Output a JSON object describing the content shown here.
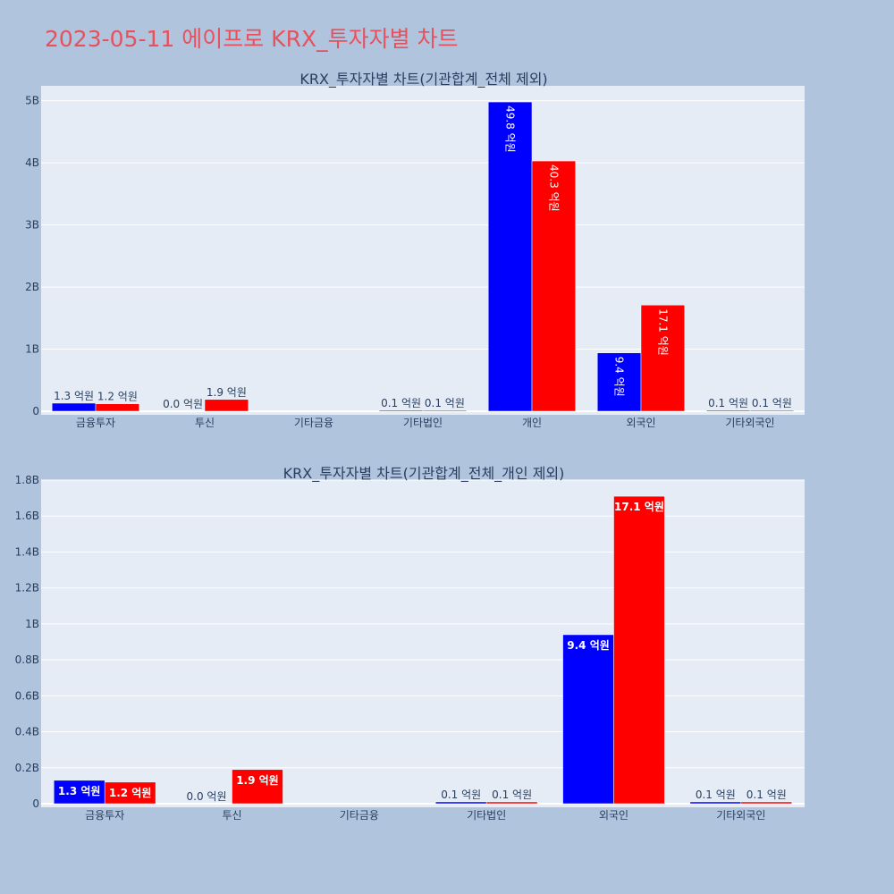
{
  "page_title": "2023-05-11 에이프로 KRX_투자자별 차트",
  "colors": {
    "background": "#b0c4de",
    "plot_bg": "#e5ecf6",
    "title": "#e8505b",
    "series_a": "#0000ff",
    "series_b": "#ff0000"
  },
  "chart_data": [
    {
      "type": "bar",
      "title": "KRX_투자자별 차트(기관합계_전체 제외)",
      "categories": [
        "금융투자",
        "투신",
        "기타금융",
        "기타법인",
        "개인",
        "외국인",
        "기타외국인"
      ],
      "series": [
        {
          "values": [
            130000000,
            0,
            0,
            10000000,
            4980000000,
            940000000,
            10000000
          ],
          "labels": [
            "1.3 억원",
            "0.0 억원",
            "",
            "0.1 억원",
            "49.8 억원",
            "9.4 억원",
            "0.1 억원"
          ]
        },
        {
          "values": [
            120000000,
            190000000,
            0,
            10000000,
            4030000000,
            1710000000,
            10000000
          ],
          "labels": [
            "1.2 억원",
            "1.9 억원",
            "",
            "0.1 억원",
            "40.3 억원",
            "17.1 억원",
            "0.1 억원"
          ]
        }
      ],
      "yticks": [
        "0",
        "1B",
        "2B",
        "3B",
        "4B",
        "5B"
      ],
      "ytick_values": [
        0,
        1000000000,
        2000000000,
        3000000000,
        4000000000,
        5000000000
      ],
      "ylim": [
        0,
        5240000000
      ]
    },
    {
      "type": "bar",
      "title": "KRX_투자자별 차트(기관합계_전체_개인 제외)",
      "categories": [
        "금융투자",
        "투신",
        "기타금융",
        "기타법인",
        "외국인",
        "기타외국인"
      ],
      "series": [
        {
          "values": [
            130000000,
            0,
            0,
            10000000,
            940000000,
            10000000
          ],
          "labels": [
            "1.3 억원",
            "0.0 억원",
            "",
            "0.1 억원",
            "9.4 억원",
            "0.1 억원"
          ]
        },
        {
          "values": [
            120000000,
            190000000,
            0,
            10000000,
            1710000000,
            10000000
          ],
          "labels": [
            "1.2 억원",
            "1.9 억원",
            "",
            "0.1 억원",
            "17.1 억원",
            "0.1 억원"
          ]
        }
      ],
      "yticks": [
        "0",
        "0.2B",
        "0.4B",
        "0.6B",
        "0.8B",
        "1B",
        "1.2B",
        "1.4B",
        "1.6B",
        "1.8B"
      ],
      "ytick_values": [
        0,
        200000000,
        400000000,
        600000000,
        800000000,
        1000000000,
        1200000000,
        1400000000,
        1600000000,
        1800000000
      ],
      "ylim": [
        0,
        1800000000
      ]
    }
  ]
}
